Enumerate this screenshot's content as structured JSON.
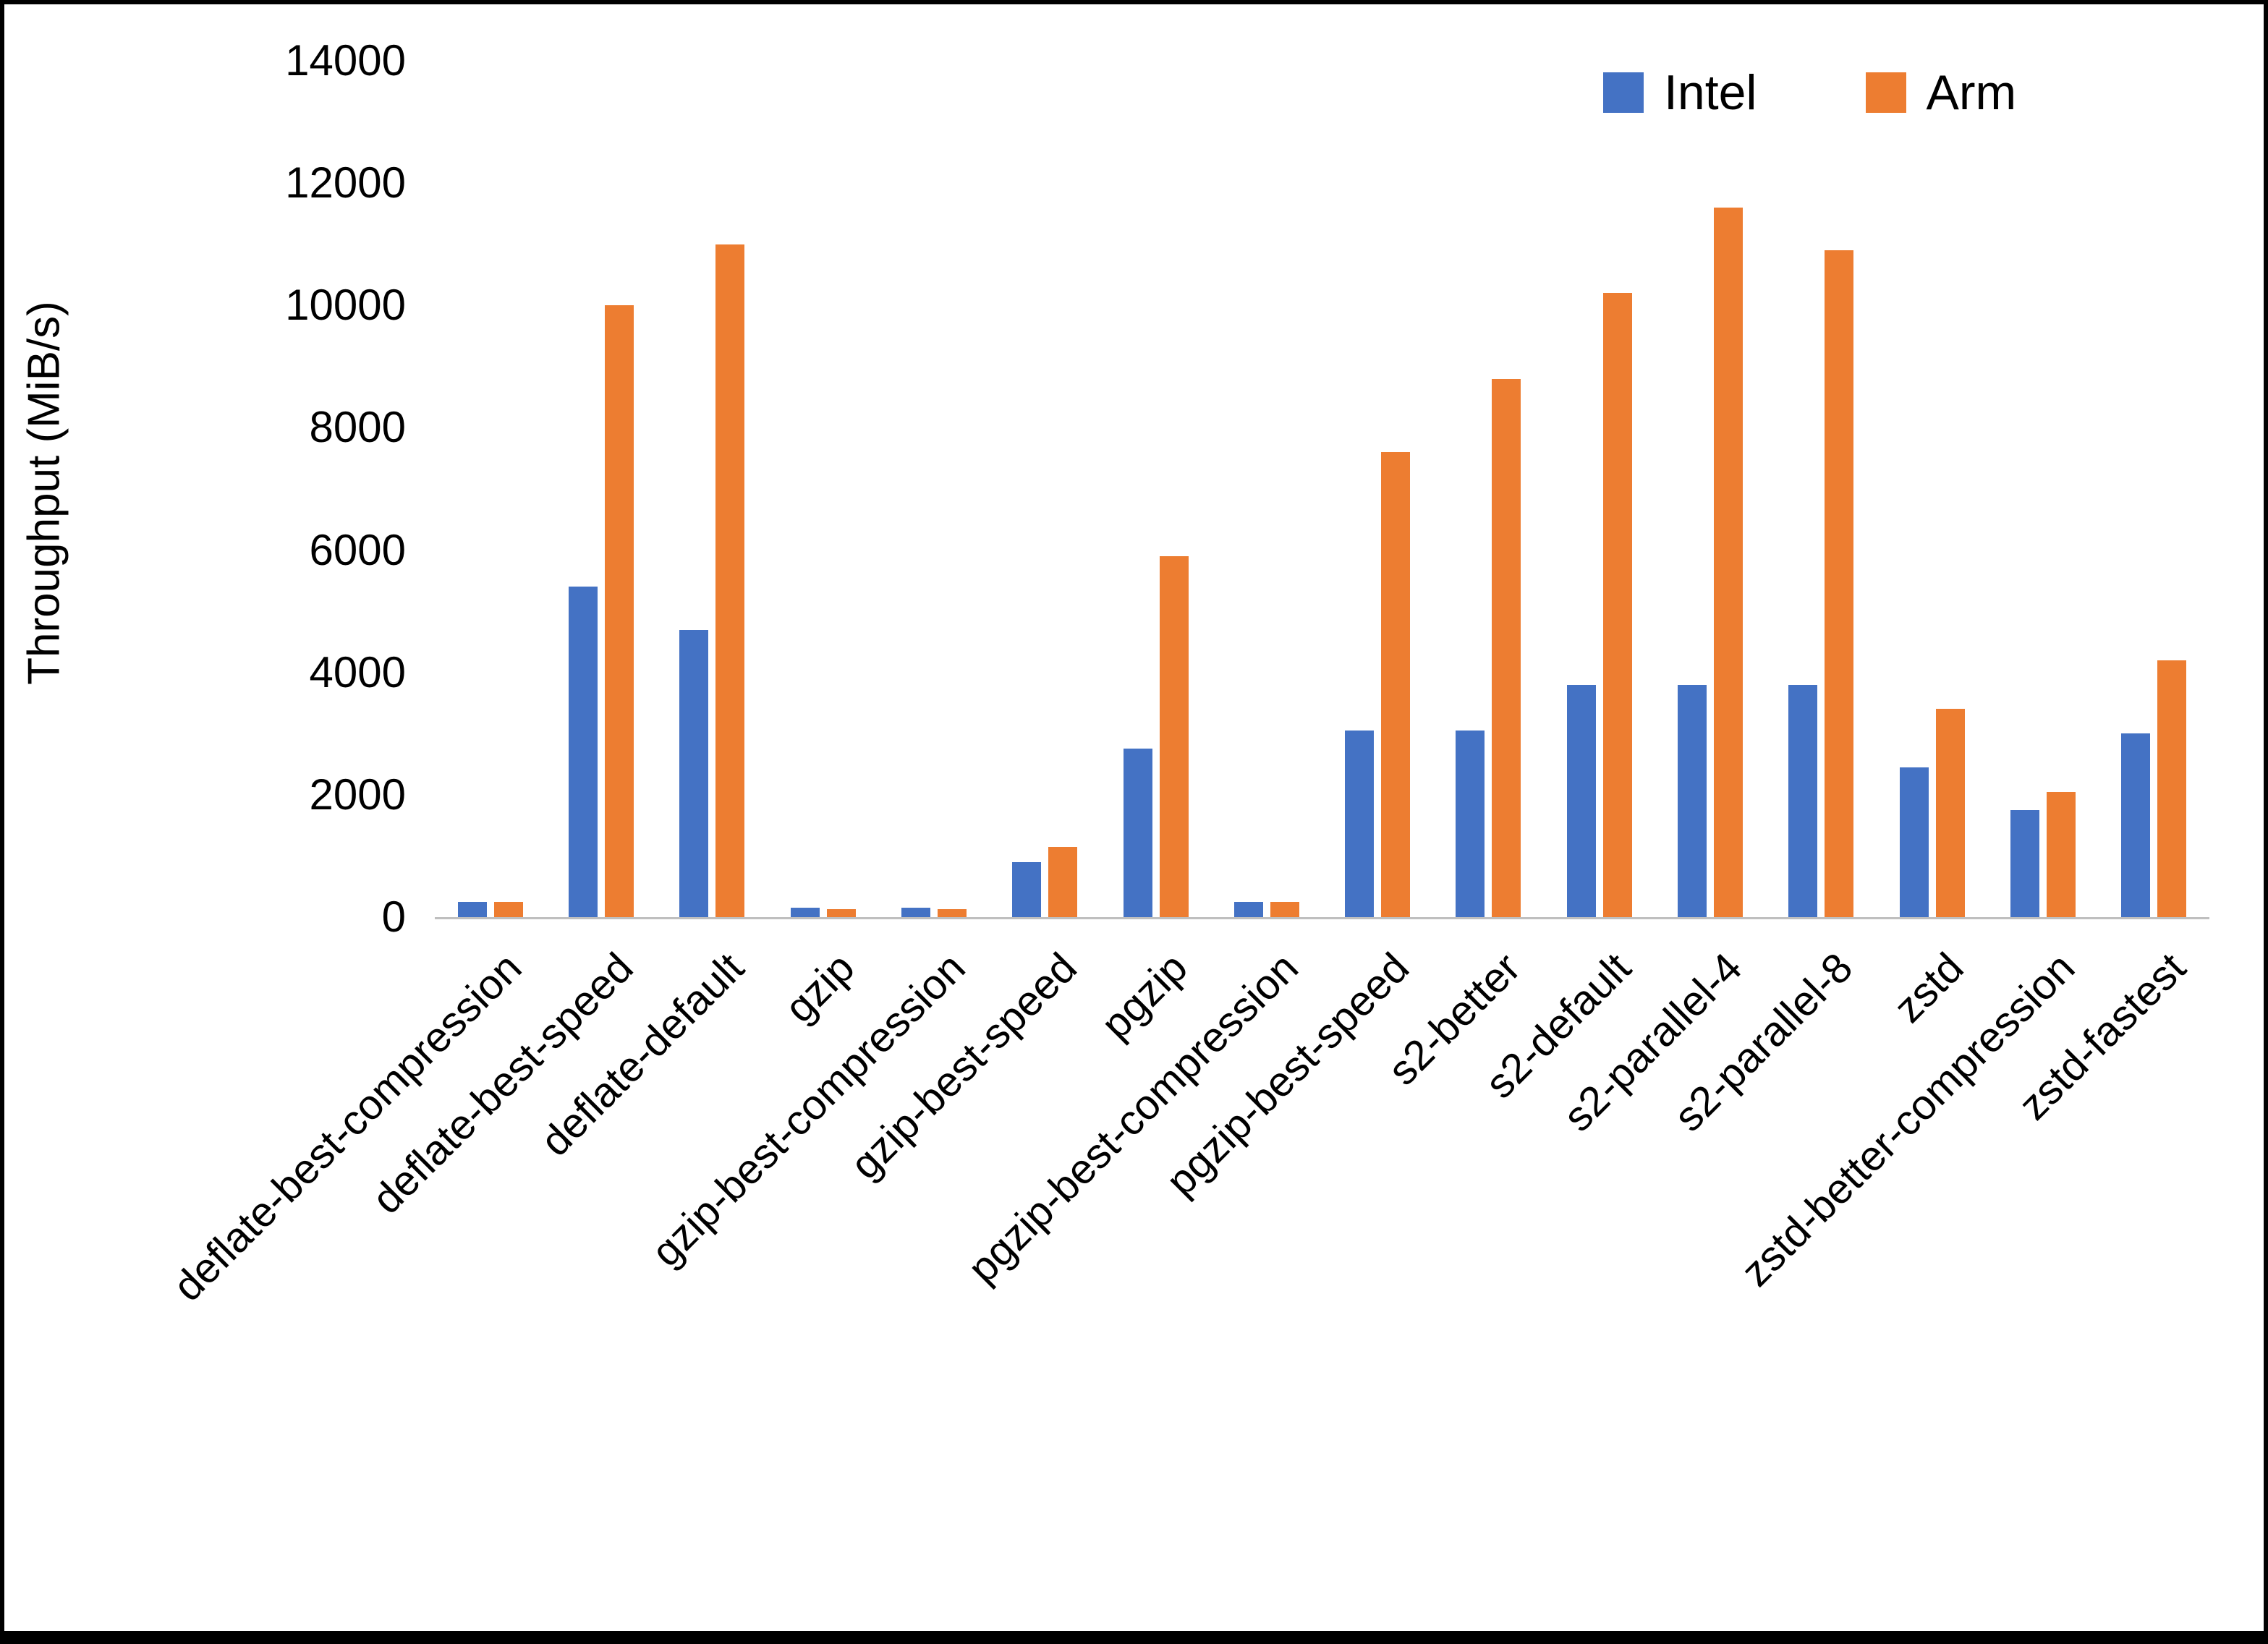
{
  "chart_data": {
    "type": "bar",
    "title": "",
    "ylabel": "Throughput (MiB/s)",
    "xlabel": "",
    "ylim": [
      0,
      14000
    ],
    "ytick_values": [
      0,
      2000,
      4000,
      6000,
      8000,
      10000,
      12000,
      14000
    ],
    "ytick_labels": [
      "0",
      "2000",
      "4000",
      "6000",
      "8000",
      "10000",
      "12000",
      "14000"
    ],
    "grid": false,
    "legend_position": "top-right",
    "categories": [
      "deflate-best-compression",
      "deflate-best-speed",
      "deflate-default",
      "gzip",
      "gzip-best-compression",
      "gzip-best-speed",
      "pgzip",
      "pgzip-best-compression",
      "pgzip-best-speed",
      "s2-better",
      "s2-default",
      "s2-parallel-4",
      "s2-parallel-8",
      "zstd",
      "zstd-better-compression",
      "zstd-fastest"
    ],
    "series": [
      {
        "name": "Intel",
        "color": "#4472C4",
        "values": [
          250,
          5400,
          4700,
          150,
          150,
          900,
          2750,
          250,
          3050,
          3050,
          3800,
          3800,
          3800,
          2450,
          1750,
          3000
        ]
      },
      {
        "name": "Arm",
        "color": "#ED7D31",
        "values": [
          250,
          10000,
          11000,
          130,
          130,
          1150,
          5900,
          250,
          7600,
          8800,
          10200,
          11600,
          10900,
          3400,
          2050,
          4200
        ]
      }
    ]
  },
  "legend": {
    "items": [
      {
        "label": "Intel",
        "color": "#4472C4"
      },
      {
        "label": "Arm",
        "color": "#ED7D31"
      }
    ]
  }
}
